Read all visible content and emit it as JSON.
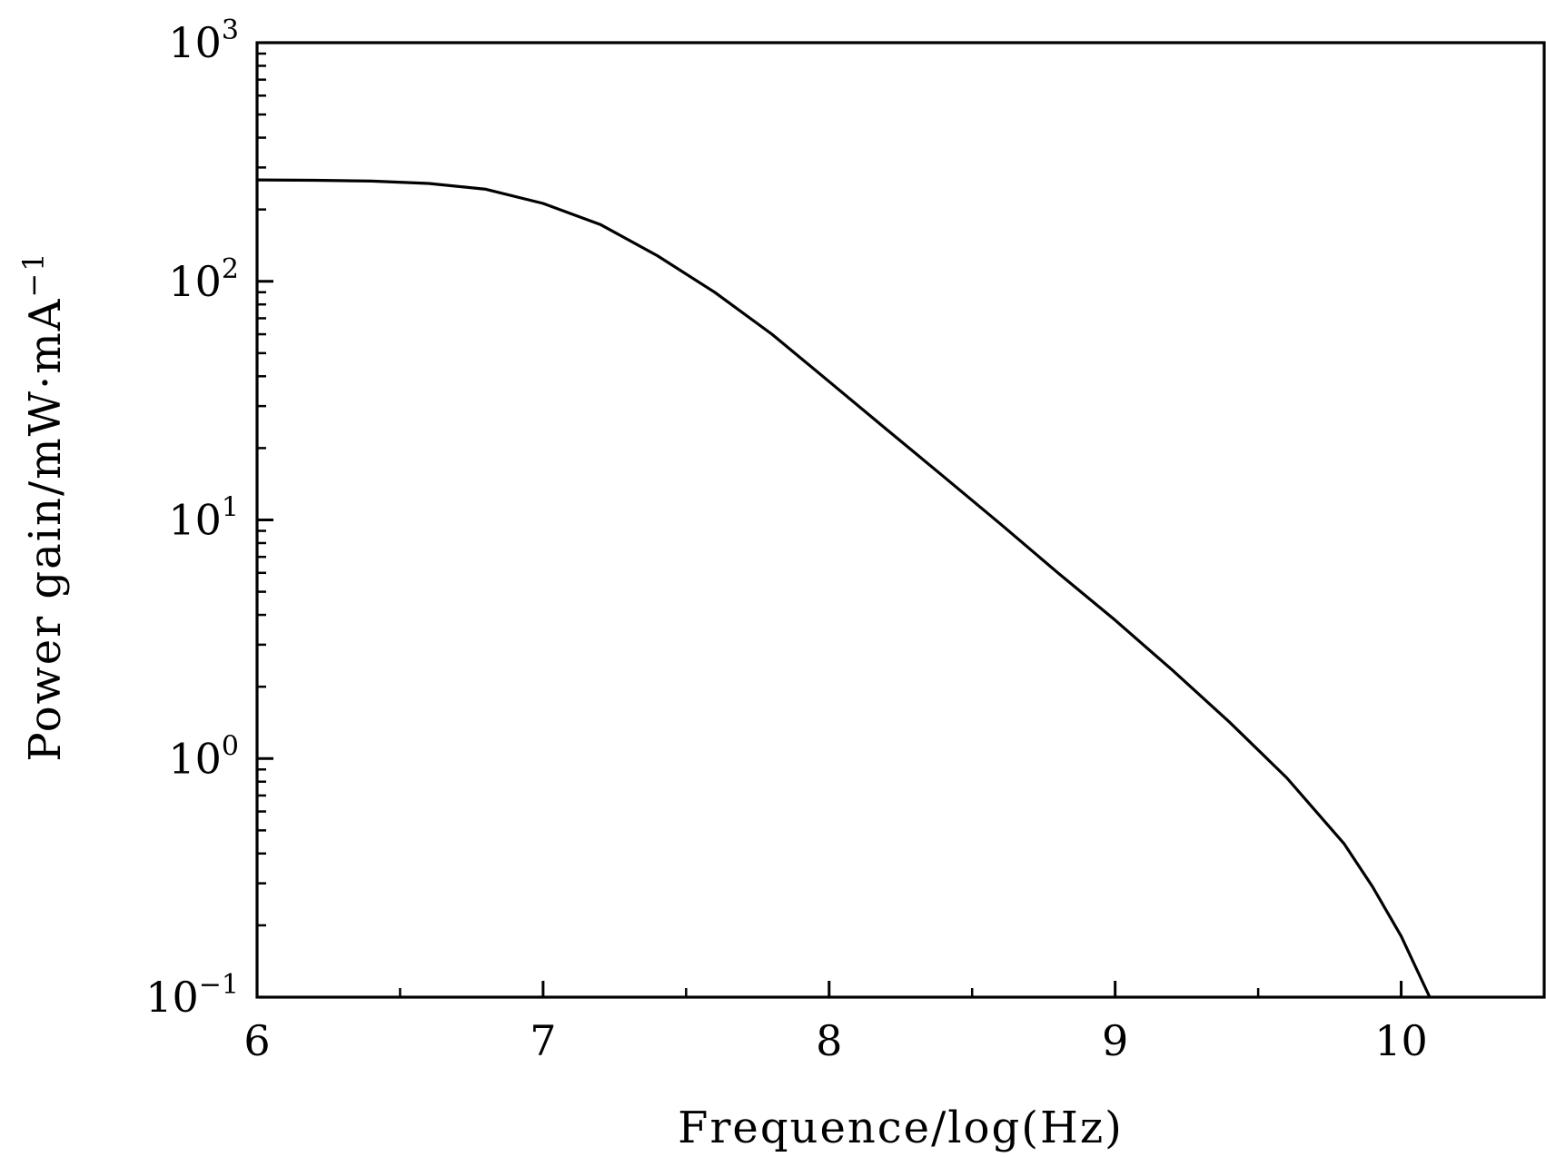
{
  "chart_data": {
    "type": "line",
    "title": "",
    "xlabel": "Frequence/log(Hz)",
    "ylabel": "Power gain/mW·mA",
    "ylabel_superscript": "−1",
    "xlim": [
      6,
      10.5
    ],
    "ylim": [
      0.1,
      1000
    ],
    "y_scale": "log",
    "grid": false,
    "legend": "none",
    "x_ticks": [
      {
        "value": 6,
        "label": "6"
      },
      {
        "value": 7,
        "label": "7"
      },
      {
        "value": 8,
        "label": "8"
      },
      {
        "value": 9,
        "label": "9"
      },
      {
        "value": 10,
        "label": "10"
      }
    ],
    "y_ticks": [
      {
        "value": 0.1,
        "base": "10",
        "exp": "−1"
      },
      {
        "value": 1,
        "base": "10",
        "exp": "0"
      },
      {
        "value": 10,
        "base": "10",
        "exp": "1"
      },
      {
        "value": 100,
        "base": "10",
        "exp": "2"
      },
      {
        "value": 1000,
        "base": "10",
        "exp": "3"
      }
    ],
    "line_color": "#000000",
    "series": [
      {
        "x": [
          6.0,
          6.2,
          6.4,
          6.6,
          6.8,
          7.0,
          7.2,
          7.4,
          7.6,
          7.8,
          8.0,
          8.2,
          8.4,
          8.6,
          8.8,
          9.0,
          9.2,
          9.4,
          9.6,
          9.8,
          9.9,
          10.0,
          10.1
        ],
        "y": [
          266,
          265,
          263,
          257,
          243,
          212,
          173,
          128,
          90,
          60,
          38,
          24,
          15.2,
          9.6,
          6.0,
          3.8,
          2.35,
          1.42,
          0.83,
          0.44,
          0.29,
          0.18,
          0.1
        ]
      }
    ]
  }
}
